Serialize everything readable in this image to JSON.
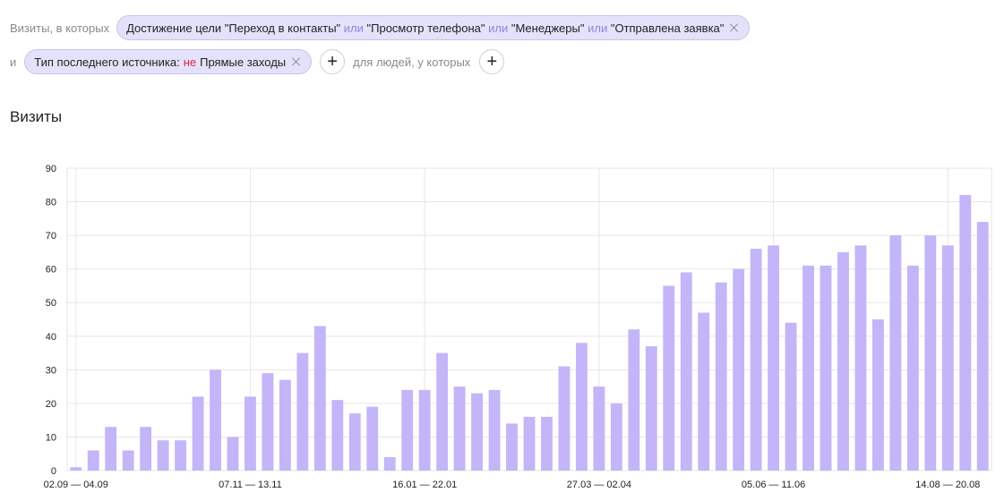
{
  "filters": {
    "row1_prefix": "Визиты, в которых",
    "goal_chip": {
      "parts": [
        {
          "text": "Достижение цели \"Переход в контакты\"",
          "style": "normal"
        },
        {
          "text": " или ",
          "style": "or"
        },
        {
          "text": "\"Просмотр телефона\"",
          "style": "normal"
        },
        {
          "text": " или ",
          "style": "or"
        },
        {
          "text": "\"Менеджеры\"",
          "style": "normal"
        },
        {
          "text": " или ",
          "style": "or"
        },
        {
          "text": "\"Отправлена заявка\"",
          "style": "normal"
        }
      ]
    },
    "row2_prefix": "и",
    "source_chip": {
      "label": "Тип последнего источника:",
      "negation": "не",
      "value": "Прямые заходы"
    },
    "people_label": "для людей, у которых",
    "add_symbol": "+"
  },
  "section_title": "Визиты",
  "colors": {
    "bar": "#c3b5f8",
    "grid": "#e6e6e6",
    "chip_bg": "#e4e2fb",
    "or": "#8b86d9",
    "negation": "#e0233c"
  },
  "chart_data": {
    "type": "bar",
    "title": "",
    "ylim": [
      0,
      90
    ],
    "yticks": [
      0,
      10,
      20,
      30,
      40,
      50,
      60,
      70,
      80,
      90
    ],
    "values": [
      1,
      6,
      13,
      6,
      13,
      9,
      9,
      22,
      30,
      10,
      22,
      29,
      27,
      35,
      43,
      21,
      17,
      19,
      4,
      24,
      24,
      35,
      25,
      23,
      24,
      14,
      16,
      16,
      31,
      38,
      25,
      20,
      42,
      37,
      55,
      59,
      47,
      56,
      60,
      66,
      67,
      44,
      61,
      61,
      65,
      67,
      45,
      70,
      61,
      70,
      67,
      82,
      74
    ],
    "xtick_labels": [
      {
        "index": 0,
        "label": "02.09 — 04.09"
      },
      {
        "index": 10,
        "label": "07.11 — 13.11"
      },
      {
        "index": 20,
        "label": "16.01 — 22.01"
      },
      {
        "index": 30,
        "label": "27.03 — 02.04"
      },
      {
        "index": 40,
        "label": "05.06 — 11.06"
      },
      {
        "index": 50,
        "label": "14.08 — 20.08"
      }
    ],
    "grid": true
  }
}
